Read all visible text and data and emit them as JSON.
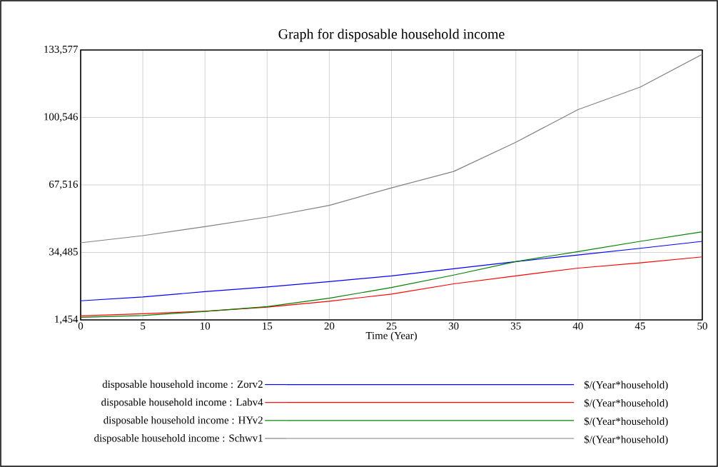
{
  "chart_data": {
    "type": "line",
    "title": "Graph for disposable household income",
    "xlabel": "Time (Year)",
    "x": [
      0,
      5,
      10,
      15,
      20,
      25,
      30,
      35,
      40,
      45,
      50
    ],
    "series": [
      {
        "name": "disposable household income : Zorv2",
        "color": "#0000ff",
        "values": [
          10800,
          12700,
          15300,
          17600,
          20200,
          23000,
          26500,
          30000,
          33200,
          36500,
          39900
        ]
      },
      {
        "name": "disposable household income : Labv4",
        "color": "#ff0000",
        "values": [
          3400,
          4500,
          5700,
          7700,
          10600,
          14100,
          19100,
          23000,
          26800,
          29400,
          32300
        ]
      },
      {
        "name": "disposable household income : HYv2",
        "color": "#008000",
        "values": [
          2700,
          3600,
          5600,
          8000,
          12100,
          17300,
          23400,
          30000,
          34900,
          39900,
          44600
        ]
      },
      {
        "name": "disposable household income : Schwv1",
        "color": "#808080",
        "values": [
          39200,
          42700,
          47100,
          51800,
          57500,
          66100,
          74100,
          88400,
          104400,
          115400,
          131500
        ]
      }
    ],
    "annotations": [
      "$/(Year*household)",
      "$/(Year*household)",
      "$/(Year*household)",
      "$/(Year*household)"
    ],
    "xlim": [
      0,
      50
    ],
    "xticks": [
      0,
      5,
      10,
      15,
      20,
      25,
      30,
      35,
      40,
      45,
      50
    ],
    "ylim": [
      1454,
      133577
    ],
    "yticks": [
      {
        "value": 1454,
        "label": "1,454"
      },
      {
        "value": 34485,
        "label": "34,485"
      },
      {
        "value": 67516,
        "label": "67,516"
      },
      {
        "value": 100546,
        "label": "100,546"
      },
      {
        "value": 133577,
        "label": "133,577"
      }
    ],
    "grid": true,
    "legend": "bottom"
  }
}
